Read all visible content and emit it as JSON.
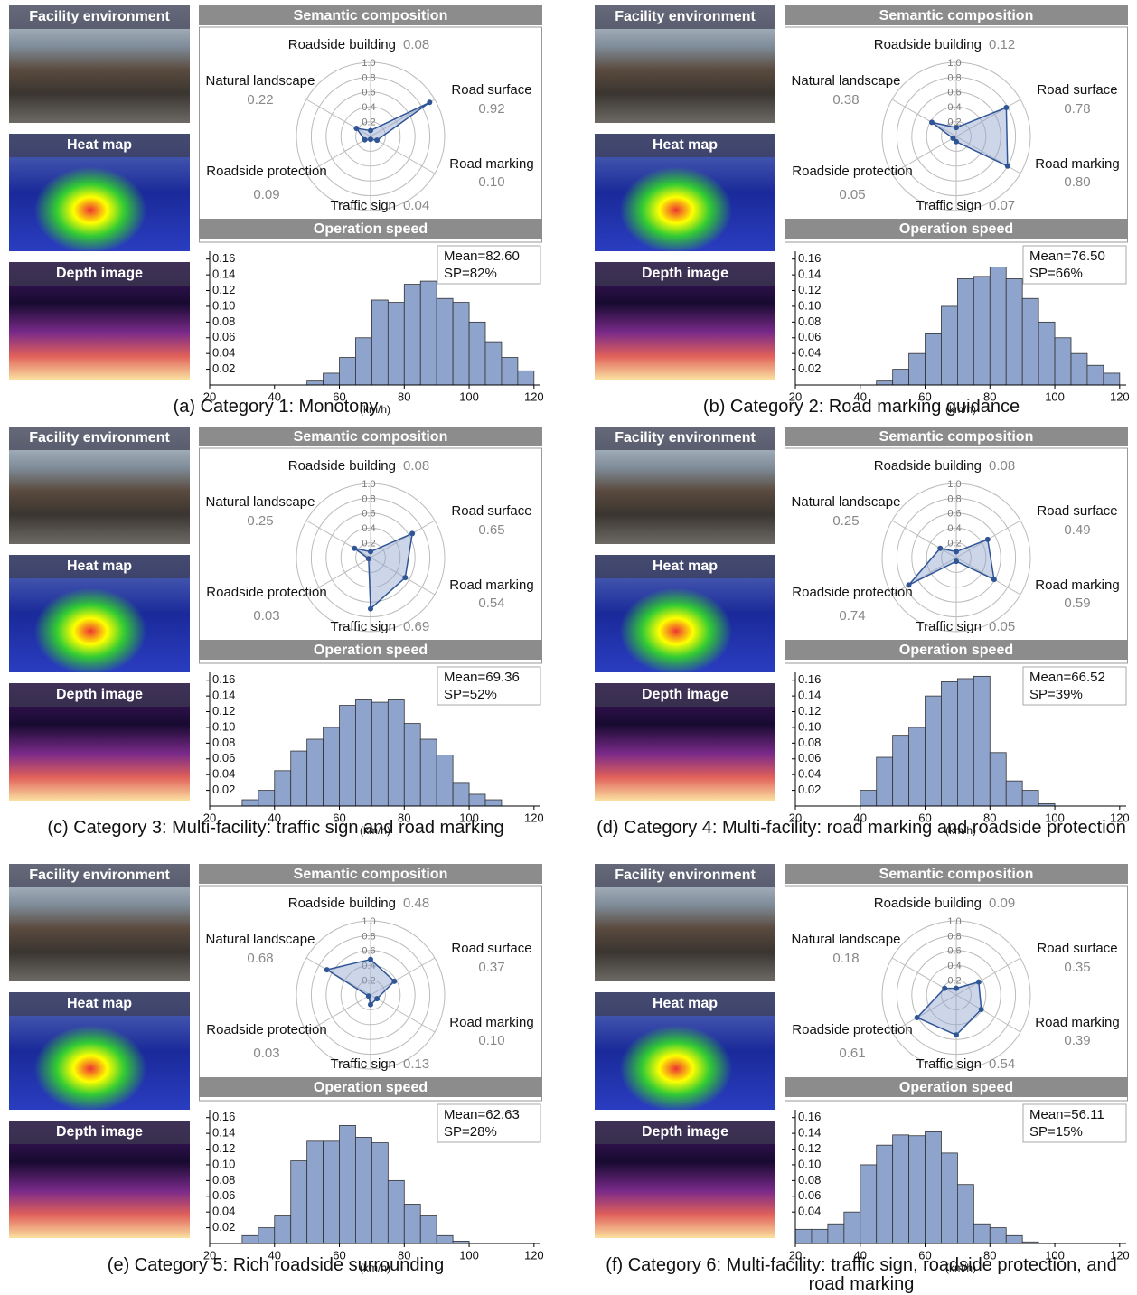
{
  "chart_data": [
    {
      "type": "radar",
      "title": "Semantic composition",
      "categories": [
        "Roadside building",
        "Road surface",
        "Road marking",
        "Traffic sign",
        "Roadside protection",
        "Natural landscape"
      ],
      "values": [
        0.08,
        0.92,
        0.1,
        0.04,
        0.09,
        0.22
      ],
      "value_labels": [
        "0.08",
        "0.92",
        "0.10",
        "0.04",
        "0.09",
        "0.22"
      ],
      "color": "#2f5597",
      "rlim": [
        0,
        1
      ],
      "rticks": [
        0.2,
        0.4,
        0.6,
        0.8,
        {
          "value": 1,
          "label": "1.0"
        }
      ]
    },
    {
      "type": "histogram",
      "title": "Operation speed",
      "bins": [
        20,
        25,
        30,
        35,
        40,
        45,
        50,
        55,
        60,
        65,
        70,
        75,
        80,
        85,
        90,
        95,
        100,
        105,
        110,
        115,
        120
      ],
      "values": [
        0,
        0,
        0,
        0,
        0,
        0,
        0.005,
        0.015,
        0.035,
        0.06,
        0.108,
        0.105,
        0.128,
        0.132,
        0.11,
        0.105,
        0.08,
        0.055,
        0.035,
        0.018
      ],
      "color": "#8fa4cc",
      "xlim": [
        20,
        122
      ],
      "xticks": [
        20,
        40,
        60,
        80,
        100,
        120
      ],
      "ylim": [
        0,
        0.17
      ],
      "yticks": [
        0.02,
        0.04,
        0.06,
        0.08,
        {
          "value": 0.1,
          "label": "0.10"
        },
        0.12,
        0.14,
        0.16
      ],
      "xlabel": "(km/h)",
      "annotations": [
        "Mean=82.60",
        "SP=82%"
      ]
    },
    {
      "type": "radar",
      "title": "Semantic composition",
      "categories": [
        "Roadside building",
        "Road surface",
        "Road marking",
        "Traffic sign",
        "Roadside protection",
        "Natural landscape"
      ],
      "values": [
        0.12,
        0.78,
        0.8,
        0.07,
        0.05,
        0.38
      ],
      "value_labels": [
        "0.12",
        "0.78",
        "0.80",
        "0.07",
        "0.05",
        "0.38"
      ],
      "color": "#2f5597",
      "rlim": [
        0,
        1
      ],
      "rticks": [
        0.2,
        0.4,
        0.6,
        0.8,
        {
          "value": 1,
          "label": "1.0"
        }
      ]
    },
    {
      "type": "histogram",
      "title": "Operation speed",
      "bins": [
        20,
        25,
        30,
        35,
        40,
        45,
        50,
        55,
        60,
        65,
        70,
        75,
        80,
        85,
        90,
        95,
        100,
        105,
        110,
        115,
        120
      ],
      "values": [
        0,
        0,
        0,
        0,
        0,
        0.005,
        0.02,
        0.04,
        0.065,
        0.1,
        0.135,
        0.138,
        0.15,
        0.135,
        0.11,
        0.08,
        0.06,
        0.04,
        0.025,
        0.015
      ],
      "color": "#8fa4cc",
      "xlim": [
        20,
        122
      ],
      "xticks": [
        20,
        40,
        60,
        80,
        100,
        120
      ],
      "ylim": [
        0,
        0.17
      ],
      "yticks": [
        0.02,
        0.04,
        0.06,
        0.08,
        {
          "value": 0.1,
          "label": "0.10"
        },
        0.12,
        0.14,
        0.16
      ],
      "xlabel": "(km/h)",
      "annotations": [
        "Mean=76.50",
        "SP=66%"
      ]
    },
    {
      "type": "radar",
      "title": "Semantic composition",
      "categories": [
        "Roadside building",
        "Road surface",
        "Road marking",
        "Traffic sign",
        "Roadside protection",
        "Natural landscape"
      ],
      "values": [
        0.08,
        0.65,
        0.54,
        0.69,
        0.03,
        0.25
      ],
      "value_labels": [
        "0.08",
        "0.65",
        "0.54",
        "0.69",
        "0.03",
        "0.25"
      ],
      "color": "#2f5597",
      "rlim": [
        0,
        1
      ],
      "rticks": [
        0.2,
        0.4,
        0.6,
        0.8,
        {
          "value": 1,
          "label": "1.0"
        }
      ]
    },
    {
      "type": "histogram",
      "title": "Operation speed",
      "bins": [
        20,
        25,
        30,
        35,
        40,
        45,
        50,
        55,
        60,
        65,
        70,
        75,
        80,
        85,
        90,
        95,
        100,
        105,
        110,
        115,
        120
      ],
      "values": [
        0,
        0,
        0.008,
        0.02,
        0.045,
        0.07,
        0.085,
        0.1,
        0.128,
        0.135,
        0.132,
        0.135,
        0.105,
        0.085,
        0.065,
        0.03,
        0.015,
        0.008,
        0,
        0
      ],
      "color": "#8fa4cc",
      "xlim": [
        20,
        122
      ],
      "xticks": [
        20,
        40,
        60,
        80,
        100,
        120
      ],
      "ylim": [
        0,
        0.17
      ],
      "yticks": [
        0.02,
        0.04,
        0.06,
        0.08,
        {
          "value": 0.1,
          "label": "0.10"
        },
        0.12,
        0.14,
        0.16
      ],
      "xlabel": "(km/h)",
      "annotations": [
        "Mean=69.36",
        "SP=52%"
      ]
    },
    {
      "type": "radar",
      "title": "Semantic composition",
      "categories": [
        "Roadside building",
        "Road surface",
        "Road marking",
        "Traffic sign",
        "Roadside protection",
        "Natural landscape"
      ],
      "values": [
        0.08,
        0.49,
        0.59,
        0.05,
        0.74,
        0.25
      ],
      "value_labels": [
        "0.08",
        "0.49",
        "0.59",
        "0.05",
        "0.74",
        "0.25"
      ],
      "color": "#2f5597",
      "rlim": [
        0,
        1
      ],
      "rticks": [
        0.2,
        0.4,
        0.6,
        0.8,
        {
          "value": 1,
          "label": "1.0"
        }
      ]
    },
    {
      "type": "histogram",
      "title": "Operation speed",
      "bins": [
        20,
        25,
        30,
        35,
        40,
        45,
        50,
        55,
        60,
        65,
        70,
        75,
        80,
        85,
        90,
        95,
        100,
        105,
        110,
        115,
        120
      ],
      "values": [
        0,
        0,
        0,
        0,
        0.02,
        0.062,
        0.09,
        0.1,
        0.14,
        0.158,
        0.162,
        0.165,
        0.068,
        0.032,
        0.02,
        0.003,
        0,
        0,
        0,
        0
      ],
      "color": "#8fa4cc",
      "xlim": [
        20,
        122
      ],
      "xticks": [
        20,
        40,
        60,
        80,
        100,
        120
      ],
      "ylim": [
        0,
        0.17
      ],
      "yticks": [
        0.02,
        0.04,
        0.06,
        0.08,
        {
          "value": 0.1,
          "label": "0.10"
        },
        0.12,
        0.14,
        0.16
      ],
      "xlabel": "(km/h)",
      "annotations": [
        "Mean=66.52",
        "SP=39%"
      ]
    },
    {
      "type": "radar",
      "title": "Semantic composition",
      "categories": [
        "Roadside building",
        "Road surface",
        "Road marking",
        "Traffic sign",
        "Roadside protection",
        "Natural landscape"
      ],
      "values": [
        0.48,
        0.37,
        0.1,
        0.13,
        0.03,
        0.68
      ],
      "value_labels": [
        "0.48",
        "0.37",
        "0.10",
        "0.13",
        "0.03",
        "0.68"
      ],
      "color": "#2f5597",
      "rlim": [
        0,
        1
      ],
      "rticks": [
        0.2,
        0.4,
        0.6,
        0.8,
        {
          "value": 1,
          "label": "1.0"
        }
      ]
    },
    {
      "type": "histogram",
      "title": "Operation speed",
      "bins": [
        20,
        25,
        30,
        35,
        40,
        45,
        50,
        55,
        60,
        65,
        70,
        75,
        80,
        85,
        90,
        95,
        100,
        105,
        110,
        115,
        120
      ],
      "values": [
        0,
        0,
        0.01,
        0.02,
        0.035,
        0.105,
        0.13,
        0.13,
        0.15,
        0.135,
        0.128,
        0.08,
        0.05,
        0.035,
        0.01,
        0.003,
        0,
        0,
        0,
        0
      ],
      "color": "#8fa4cc",
      "xlim": [
        20,
        122
      ],
      "xticks": [
        20,
        40,
        60,
        80,
        100,
        120
      ],
      "ylim": [
        0,
        0.17
      ],
      "yticks": [
        0.02,
        0.04,
        0.06,
        0.08,
        {
          "value": 0.1,
          "label": "0.10"
        },
        0.12,
        0.14,
        0.16
      ],
      "xlabel": "(km/h)",
      "annotations": [
        "Mean=62.63",
        "SP=28%"
      ]
    },
    {
      "type": "radar",
      "title": "Semantic composition",
      "categories": [
        "Roadside building",
        "Road surface",
        "Road marking",
        "Traffic sign",
        "Roadside protection",
        "Natural landscape"
      ],
      "values": [
        0.09,
        0.35,
        0.39,
        0.54,
        0.61,
        0.18
      ],
      "value_labels": [
        "0.09",
        "0.35",
        "0.39",
        "0.54",
        "0.61",
        "0.18"
      ],
      "color": "#2f5597",
      "rlim": [
        0,
        1
      ],
      "rticks": [
        0.2,
        0.4,
        0.6,
        0.8,
        {
          "value": 1,
          "label": "1.0"
        }
      ]
    },
    {
      "type": "histogram",
      "title": "Operation speed",
      "bins": [
        20,
        25,
        30,
        35,
        40,
        45,
        50,
        55,
        60,
        65,
        70,
        75,
        80,
        85,
        90,
        95,
        100,
        105,
        110,
        115,
        120
      ],
      "values": [
        0.018,
        0.018,
        0.025,
        0.04,
        0.1,
        0.125,
        0.138,
        0.137,
        0.142,
        0.115,
        0.075,
        0.025,
        0.02,
        0.01,
        0.002,
        0,
        0,
        0,
        0,
        0
      ],
      "color": "#8fa4cc",
      "xlim": [
        20,
        122
      ],
      "xticks": [
        20,
        40,
        60,
        80,
        100,
        120
      ],
      "ylim": [
        0,
        0.17
      ],
      "yticks": [
        0.04,
        0.06,
        0.08,
        {
          "value": 0.1,
          "label": "0.10"
        },
        0.12,
        0.14,
        0.16
      ],
      "xlabel": "(km/h)",
      "annotations": [
        "Mean=56.11",
        "SP=15%"
      ]
    }
  ],
  "panels": [
    {
      "images": [
        "Facility environment",
        "Heat map",
        "Depth image"
      ],
      "caption": "(a) Category 1: Monotony"
    },
    {
      "images": [
        "Facility environment",
        "Heat map",
        "Depth image"
      ],
      "caption": "(b) Category 2: Road marking guidance"
    },
    {
      "images": [
        "Facility environment",
        "Heat map",
        "Depth image"
      ],
      "caption": "(c) Category 3: Multi-facility: traffic sign and road marking"
    },
    {
      "images": [
        "Facility environment",
        "Heat map",
        "Depth image"
      ],
      "caption": "(d) Category 4: Multi-facility: road marking and roadside protection"
    },
    {
      "images": [
        "Facility environment",
        "Heat map",
        "Depth image"
      ],
      "caption": "(e) Category 5: Rich roadside surrounding"
    },
    {
      "images": [
        "Facility environment",
        "Heat map",
        "Depth image"
      ],
      "caption": "(f) Category 6: Multi-facility: traffic sign, roadside protection, and road marking"
    }
  ]
}
